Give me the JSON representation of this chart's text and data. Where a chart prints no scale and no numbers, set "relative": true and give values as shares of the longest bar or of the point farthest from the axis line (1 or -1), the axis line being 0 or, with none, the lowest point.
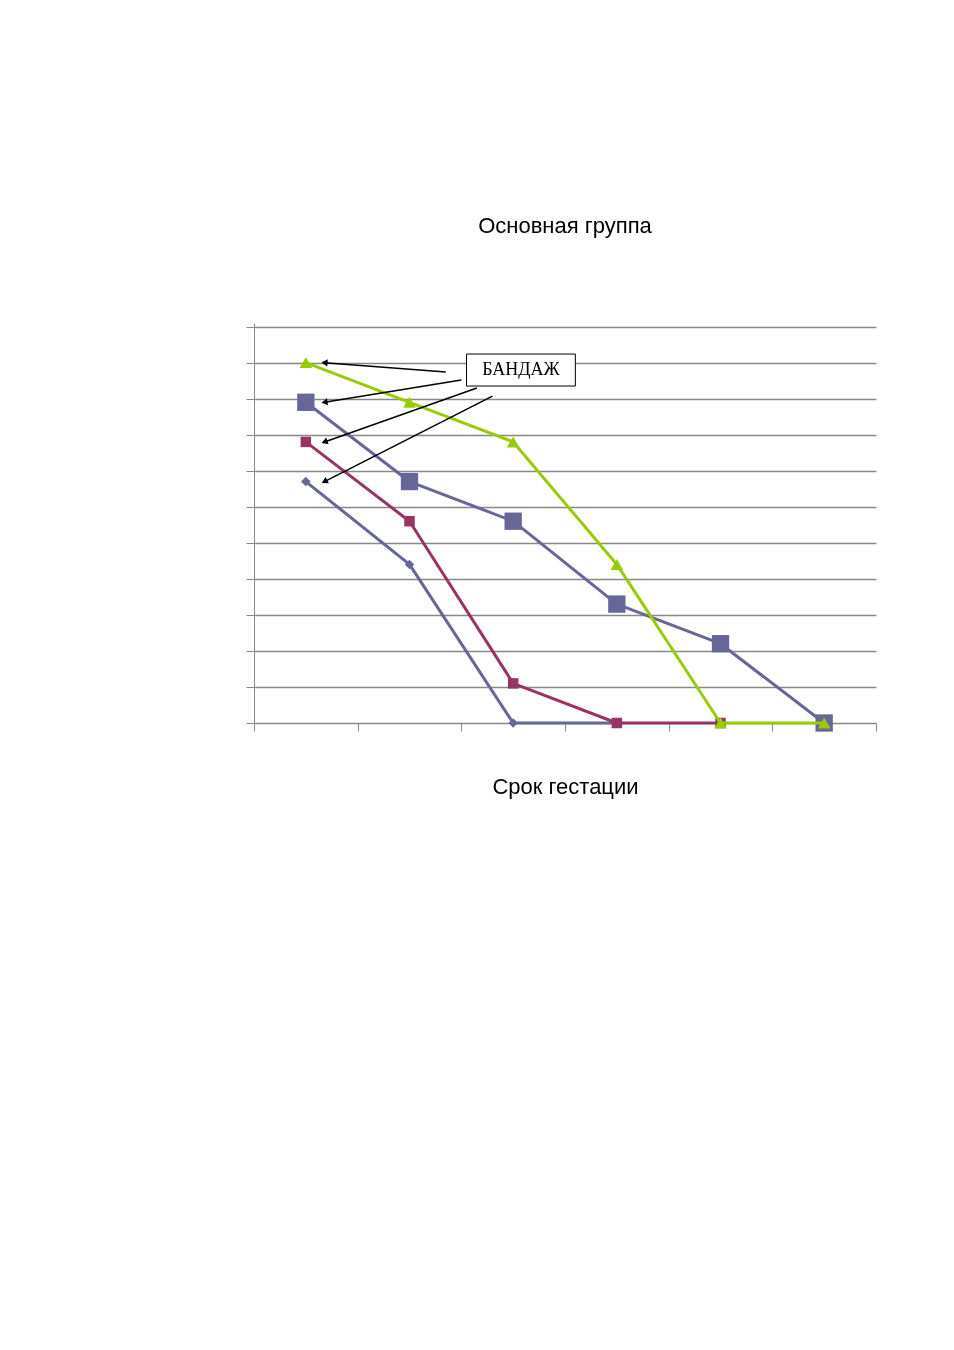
{
  "chart_data": {
    "type": "line",
    "title": "Основная группа",
    "xlabel": "Срок гестации",
    "relative": true,
    "tick_labels": false,
    "grid": "y",
    "line_style": "solid",
    "categories": [
      null,
      null,
      null,
      null,
      null,
      null
    ],
    "annotations": [
      "БАНДАЖ"
    ],
    "series": [
      {
        "color": "#666699",
        "marker": "diamond",
        "values": [
          0.67,
          0.44,
          0,
          0,
          null,
          null
        ]
      },
      {
        "color": "#993366",
        "marker": "square",
        "values": [
          0.78,
          0.56,
          0.11,
          0,
          0,
          null
        ]
      },
      {
        "color": "#666699",
        "marker": "square",
        "values": [
          0.89,
          0.67,
          0.56,
          0.33,
          0.22,
          0
        ]
      },
      {
        "color": "#99cc00",
        "marker": "triangle",
        "values": [
          1,
          0.89,
          0.78,
          0.44,
          0,
          0
        ]
      }
    ]
  }
}
